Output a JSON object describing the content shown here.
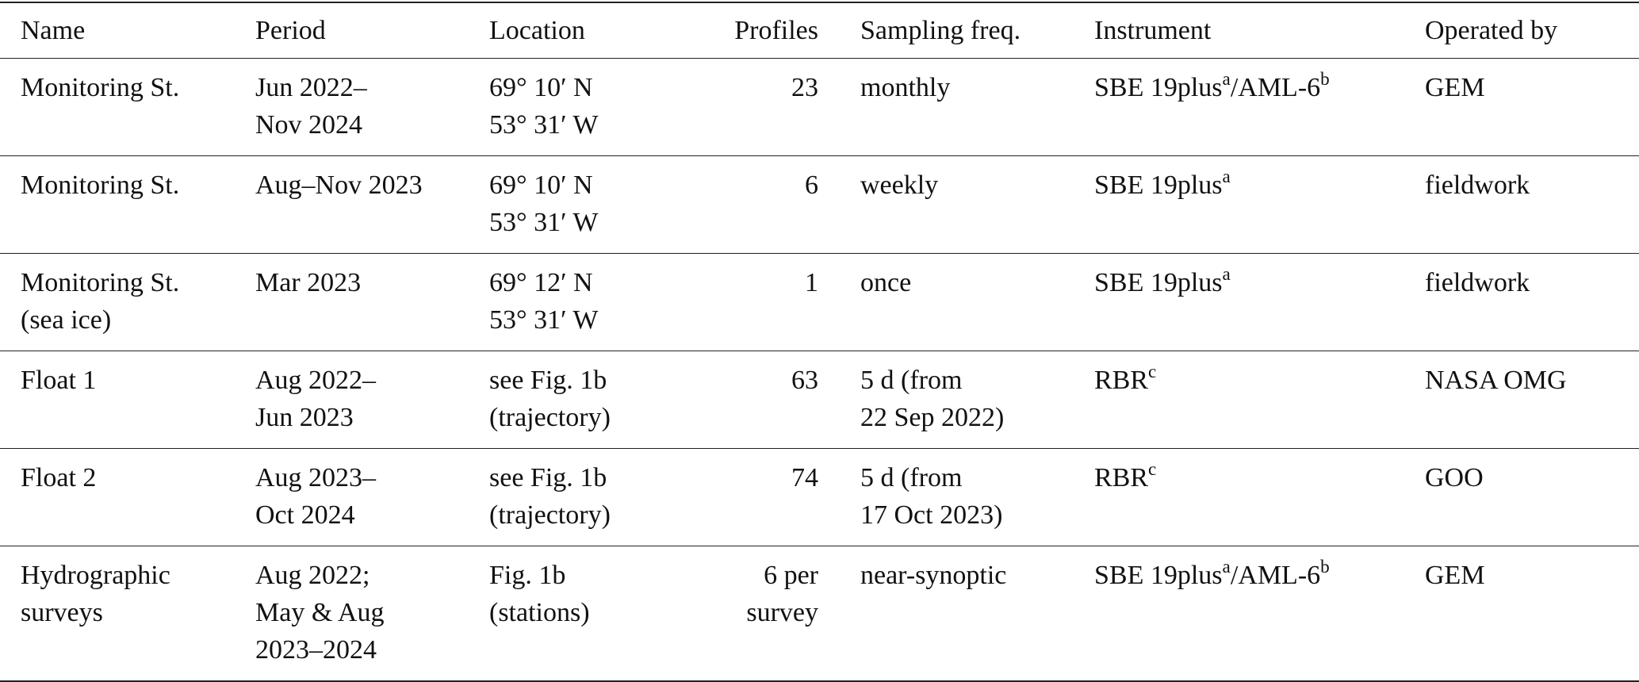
{
  "table": {
    "header": [
      "Name",
      "Period",
      "Location",
      "Profiles",
      "Sampling freq.",
      "Instrument",
      "Operated by"
    ],
    "rows": [
      [
        [
          "Monitoring St."
        ],
        [
          "Jun 2022–",
          "Nov 2024"
        ],
        [
          "69° 10′ N",
          "53° 31′ W"
        ],
        [
          23
        ],
        [
          "monthly"
        ],
        [
          [
            "SBE 19plus",
            {
              "sup": "a"
            },
            "/AML-6",
            {
              "sup": "b"
            }
          ]
        ],
        [
          "GEM"
        ]
      ],
      [
        [
          "Monitoring St."
        ],
        [
          "Aug–Nov 2023"
        ],
        [
          "69° 10′ N",
          "53° 31′ W"
        ],
        [
          6
        ],
        [
          "weekly"
        ],
        [
          [
            "SBE 19plus",
            {
              "sup": "a"
            }
          ]
        ],
        [
          "fieldwork"
        ]
      ],
      [
        [
          "Monitoring St.",
          "(sea ice)"
        ],
        [
          "Mar 2023"
        ],
        [
          "69° 12′ N",
          "53° 31′ W"
        ],
        [
          1
        ],
        [
          "once"
        ],
        [
          [
            "SBE 19plus",
            {
              "sup": "a"
            }
          ]
        ],
        [
          "fieldwork"
        ]
      ],
      [
        [
          "Float 1"
        ],
        [
          "Aug 2022–",
          "Jun 2023"
        ],
        [
          "see Fig. 1b",
          "(trajectory)"
        ],
        [
          63
        ],
        [
          "5 d (from",
          "22 Sep 2022)"
        ],
        [
          [
            "RBR",
            {
              "sup": "c"
            }
          ]
        ],
        [
          "NASA OMG"
        ]
      ],
      [
        [
          "Float 2"
        ],
        [
          "Aug 2023–",
          "Oct 2024"
        ],
        [
          "see Fig. 1b",
          "(trajectory)"
        ],
        [
          74
        ],
        [
          "5 d (from",
          "17 Oct 2023)"
        ],
        [
          [
            "RBR",
            {
              "sup": "c"
            }
          ]
        ],
        [
          "GOO"
        ]
      ],
      [
        [
          "Hydrographic",
          "surveys"
        ],
        [
          "Aug 2022;",
          "May & Aug",
          "2023–2024"
        ],
        [
          "Fig. 1b",
          "(stations)"
        ],
        [
          "6 per",
          "survey"
        ],
        [
          "near-synoptic"
        ],
        [
          [
            "SBE 19plus",
            {
              "sup": "a"
            },
            "/AML-6",
            {
              "sup": "b"
            }
          ]
        ],
        [
          "GEM"
        ]
      ]
    ]
  }
}
